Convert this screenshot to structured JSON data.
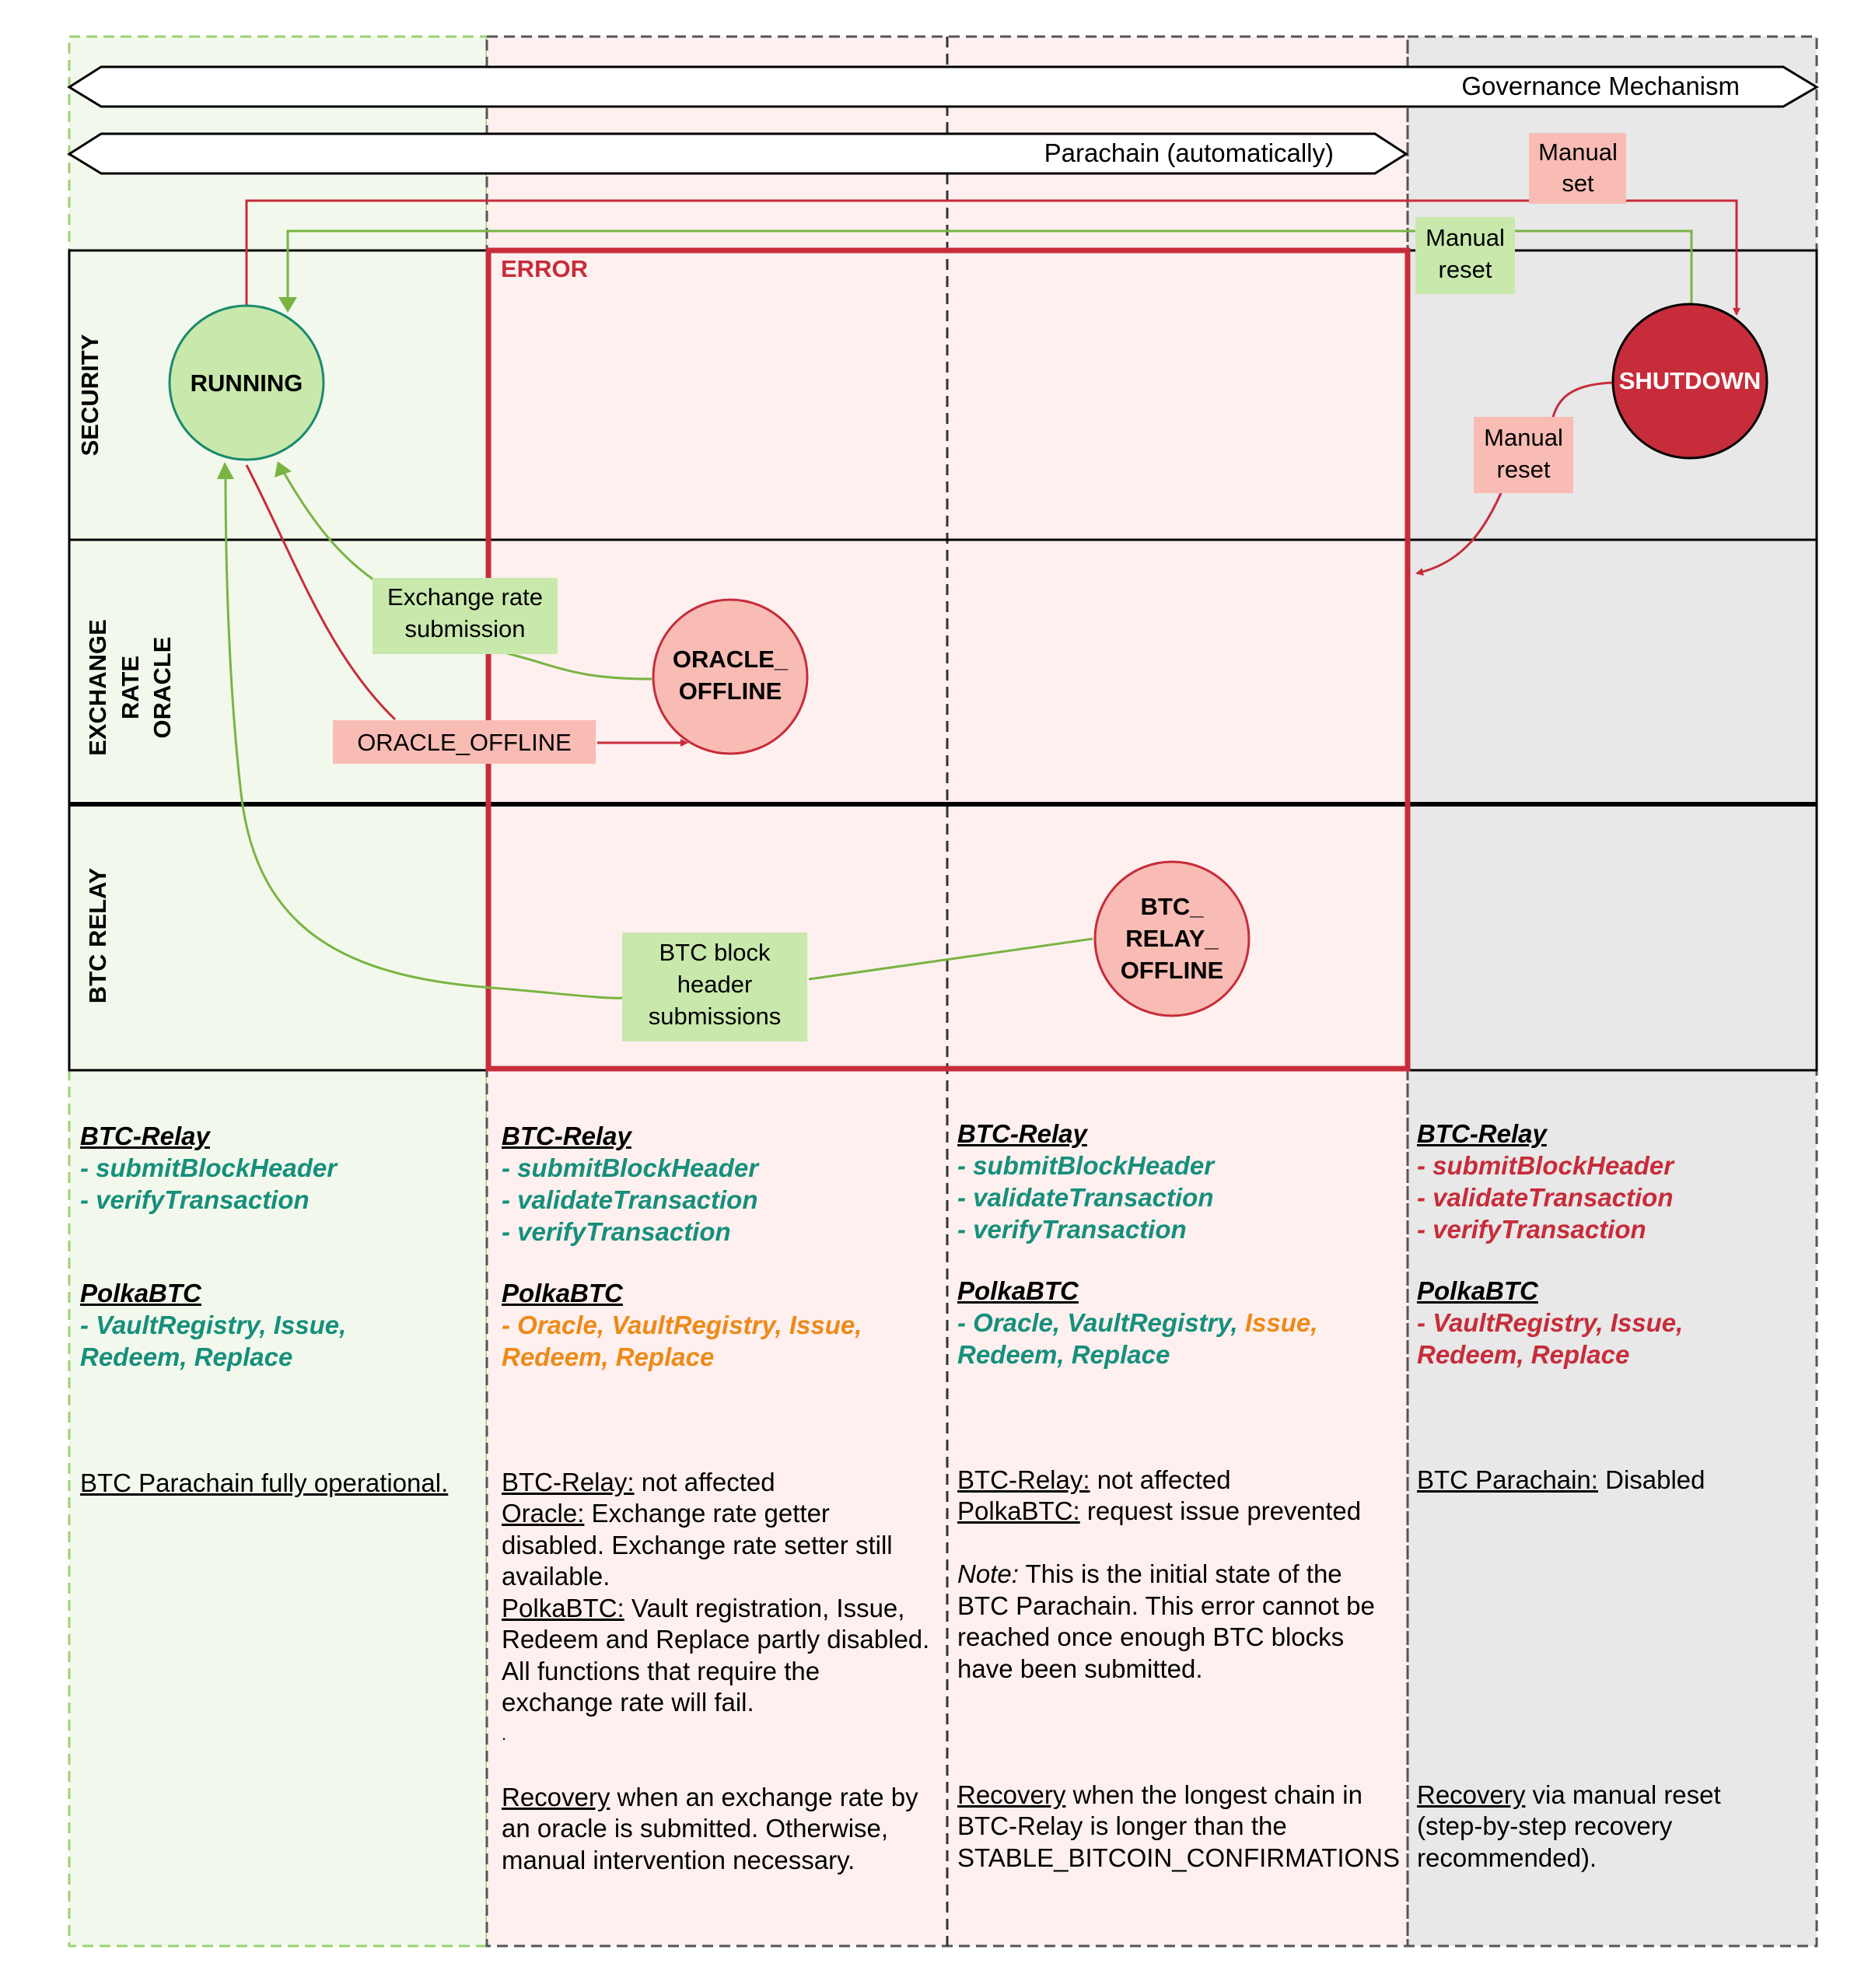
{
  "banners": {
    "governance": "Governance Mechanism",
    "parachain": "Parachain (automatically)"
  },
  "lanes": {
    "security": "SECURITY",
    "oracle_line1": "EXCHANGE",
    "oracle_line2": "RATE",
    "oracle_line3": "ORACLE",
    "relay": "BTC RELAY"
  },
  "error_label": "ERROR",
  "states": {
    "running": "RUNNING",
    "shutdown": "SHUTDOWN",
    "oracle_offline_1": "ORACLE_",
    "oracle_offline_2": "OFFLINE",
    "relay_offline_1": "BTC_",
    "relay_offline_2": "RELAY_",
    "relay_offline_3": "OFFLINE"
  },
  "transitions": {
    "manual_set_1": "Manual",
    "manual_set_2": "set",
    "manual_reset_top_1": "Manual",
    "manual_reset_top_2": "reset",
    "manual_reset_side_1": "Manual",
    "manual_reset_side_2": "reset",
    "exchange_rate_1": "Exchange rate",
    "exchange_rate_2": "submission",
    "oracle_offline": "ORACLE_OFFLINE",
    "btc_block_1": "BTC block",
    "btc_block_2": "header",
    "btc_block_3": "submissions"
  },
  "colors": {
    "green_fill": "#c9e8ac",
    "green_line": "#79b443",
    "red_line": "#c72c3a",
    "pink_fill": "#f8bcb4",
    "teal": "#168f7b",
    "orange": "#ed8a19",
    "shutdown_fill": "#c72c3a",
    "running_stroke": "#1a8a6e"
  },
  "columns": {
    "running": {
      "relay_header": "BTC-Relay",
      "relay_fns": [
        "- submitBlockHeader",
        "- verifyTransaction"
      ],
      "polka_header": "PolkaBTC",
      "polka_fn_1": "- VaultRegistry, Issue,",
      "polka_fn_2": "Redeem, Replace",
      "desc": "BTC Parachain fully operational."
    },
    "oracle": {
      "relay_header": "BTC-Relay",
      "relay_fns": [
        "- submitBlockHeader",
        "- validateTransaction",
        "- verifyTransaction"
      ],
      "polka_header": "PolkaBTC",
      "polka_fn_1": "- Oracle, VaultRegistry, Issue,",
      "polka_fn_2": "Redeem, Replace",
      "d1_u": "BTC-Relay:",
      "d1": " not affected",
      "d2_u": "Oracle:",
      "d2": " Exchange rate getter",
      "d3": "disabled. Exchange rate setter still",
      "d4": "available.",
      "d5_u": "PolkaBTC:",
      "d5": " Vault registration, Issue,",
      "d6": "Redeem and Replace partly disabled.",
      "d7": "All functions that require the",
      "d8": "exchange rate will fail.",
      "d9": ".",
      "r1_u": "Recovery",
      "r1": " when an exchange rate by",
      "r2": "an oracle is submitted. Otherwise,",
      "r3": "manual intervention necessary."
    },
    "relay": {
      "relay_header": "BTC-Relay",
      "relay_fns": [
        "- submitBlockHeader",
        "- validateTransaction",
        "- verifyTransaction"
      ],
      "polka_header": "PolkaBTC",
      "polka_fn_1a": "- Oracle, VaultRegistry,",
      "polka_fn_1b": " Issue,",
      "polka_fn_2": "Redeem, Replace",
      "d1_u": "BTC-Relay:",
      "d1": " not affected",
      "d2_u": "PolkaBTC:",
      "d2": " request issue prevented",
      "n1_i": "Note:",
      "n1": " This is the initial state of the",
      "n2": "BTC Parachain. This error cannot be",
      "n3": "reached once enough BTC blocks",
      "n4": "have been submitted.",
      "r1_u": "Recovery",
      "r1": " when the longest chain in",
      "r2": "BTC-Relay is longer than the",
      "r3": "STABLE_BITCOIN_CONFIRMATIONS"
    },
    "shutdown": {
      "relay_header": "BTC-Relay",
      "relay_fns": [
        "- submitBlockHeader",
        "- validateTransaction",
        "- verifyTransaction"
      ],
      "polka_header": "PolkaBTC",
      "polka_fn_1": "- VaultRegistry, Issue,",
      "polka_fn_2": "Redeem, Replace",
      "d1_u": "BTC Parachain:",
      "d1": " Disabled",
      "r1_u": "Recovery",
      "r1": " via manual reset",
      "r2": "(step-by-step recovery",
      "r3": "recommended)."
    }
  }
}
